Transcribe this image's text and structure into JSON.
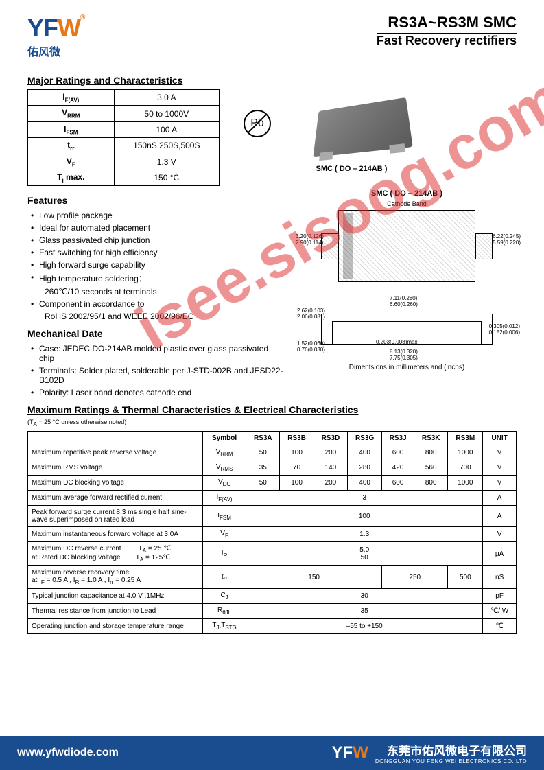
{
  "header": {
    "logo_main": "YF",
    "logo_w": "W",
    "logo_r": "®",
    "logo_sub": "佑风微",
    "title_main": "RS3A~RS3M  SMC",
    "title_sub": "Fast Recovery rectifiers"
  },
  "watermark": "isee.sisoog.com",
  "ratings": {
    "title": "Major Ratings and Characteristics",
    "rows": [
      {
        "sym": "I<sub>F(AV)</sub>",
        "val": "3.0 A"
      },
      {
        "sym": "V<sub>RRM</sub>",
        "val": "50 to 1000V"
      },
      {
        "sym": "I<sub>FSM</sub>",
        "val": "100 A"
      },
      {
        "sym": "t<sub>rr</sub>",
        "val": "150nS,250S,500S"
      },
      {
        "sym": "V<sub>F</sub>",
        "val": "1.3 V"
      },
      {
        "sym": "T<sub>j</sub> max.",
        "val": "150 °C"
      }
    ]
  },
  "chip_label": "SMC ( DO – 214AB )",
  "pb_text": "Pb",
  "features": {
    "title": "Features",
    "items": [
      "Low profile package",
      "Ideal for automated placement",
      "Glass passivated chip junction",
      "Fast switching for high efficiency",
      "High forward surge capability",
      "High temperature soldering：",
      "260℃/10 seconds at terminals",
      "Component in accordance to",
      "RoHS 2002/95/1 and WEEE 2002/96/EC"
    ]
  },
  "mechanical": {
    "title": "Mechanical Date",
    "items": [
      "Case: JEDEC DO-214AB molded plastic over glass passivated chip",
      "Terminals: Solder plated, solderable per J-STD-002B and JESD22-B102D",
      "Polarity: Laser band denotes cathode end"
    ]
  },
  "diagram": {
    "title": "SMC ( DO – 214AB )",
    "cathode": "Cathode Band",
    "dim_left": "3.20(0.126)\n2.90(0.114)",
    "dim_right": "6.22(0.245)\n5.59(0.220)",
    "dim_bot1": "7.11(0.280)\n6.60(0.260)",
    "side_dim1": "2.62(0.103)\n2.06(0.081)",
    "side_dim2": "1.52(0.060)\n0.76(0.030)",
    "side_dim3": "0.203(0.008)max",
    "side_dim4": "0.305(0.012)\n0.152(0.006)",
    "side_dim5": "8.13(0.320)\n7.75(0.305)",
    "caption": "Dimentsions in millimeters and (inchs)"
  },
  "maxratings": {
    "title": "Maximum Ratings & Thermal Characteristics & Electrical Characteristics",
    "note": "(T<sub>A</sub> = 25 °C unless otherwise noted)",
    "headers": [
      "",
      "Symbol",
      "RS3A",
      "RS3B",
      "RS3D",
      "RS3G",
      "RS3J",
      "RS3K",
      "RS3M",
      "UNIT"
    ],
    "rows": [
      {
        "p": "Maximum repetitive peak reverse voltage",
        "s": "V<sub>RRM</sub>",
        "v": [
          "50",
          "100",
          "200",
          "400",
          "600",
          "800",
          "1000"
        ],
        "u": "V"
      },
      {
        "p": "Maximum RMS voltage",
        "s": "V<sub>RMS</sub>",
        "v": [
          "35",
          "70",
          "140",
          "280",
          "420",
          "560",
          "700"
        ],
        "u": "V"
      },
      {
        "p": "Maximum DC blocking voltage",
        "s": "V<sub>DC</sub>",
        "v": [
          "50",
          "100",
          "200",
          "400",
          "600",
          "800",
          "1000"
        ],
        "u": "V"
      },
      {
        "p": "Maximum average forward rectified current",
        "s": "I<sub>F(AV)</sub>",
        "span": "3",
        "u": "A"
      },
      {
        "p": "Peak forward surge current 8.3 ms single half sine-wave superimposed on rated load",
        "s": "I<sub>FSM</sub>",
        "span": "100",
        "u": "A"
      },
      {
        "p": "Maximum instantaneous forward voltage at 3.0A",
        "s": "V<sub>F</sub>",
        "span": "1.3",
        "u": "V"
      },
      {
        "p": "Maximum DC reverse current &nbsp;&nbsp;&nbsp;&nbsp;&nbsp;&nbsp;&nbsp;&nbsp;T<sub>A</sub> = 25 ℃<br>at Rated DC blocking voltage &nbsp;&nbsp;&nbsp;&nbsp;&nbsp;&nbsp;&nbsp;T<sub>A</sub> = 125℃",
        "s": "I<sub>R</sub>",
        "span": "5.0<br>50",
        "u": "μA"
      },
      {
        "p": "Maximum reverse recovery time<br>at I<sub>F</sub> = 0.5 A , I<sub>R</sub> = 1.0 A , I<sub>rr</sub> = 0.25 A",
        "s": "t<sub>rr</sub>",
        "trr": [
          "150",
          "250",
          "500"
        ],
        "u": "nS"
      },
      {
        "p": "Typical junction capacitance at 4.0 V ,1MHz",
        "s": "C<sub>J</sub>",
        "span": "30",
        "u": "pF"
      },
      {
        "p": "Thermal resistance from junction to Lead",
        "s": "R<sub>θJL</sub>",
        "span": "35",
        "u": "℃/ W"
      },
      {
        "p": "Operating junction and storage temperature range",
        "s": "T<sub>J</sub>,T<sub>STG</sub>",
        "span": "–55 to +150",
        "u": "℃"
      }
    ]
  },
  "footer": {
    "url": "www.yfwdiode.com",
    "logo_main": "YF",
    "logo_w": "W",
    "cn": "东莞市佑风微电子有限公司",
    "en": "DONGGUAN YOU FENG WEI ELECTRONICS CO.,LTD"
  }
}
